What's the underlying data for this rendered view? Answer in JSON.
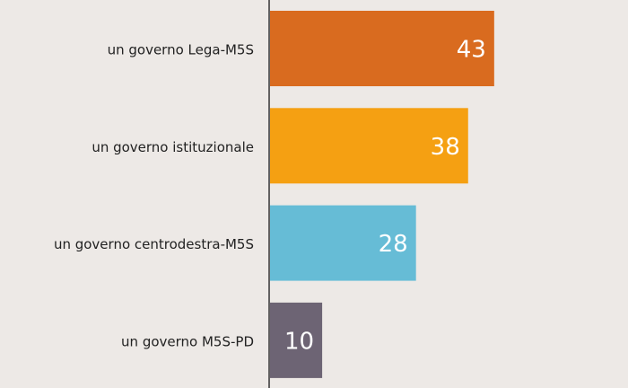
{
  "chart_data": {
    "type": "hbar",
    "categories": [
      "un governo Lega-M5S",
      "un governo istituzionale",
      "un governo centrodestra-M5S",
      "un governo M5S-PD"
    ],
    "values": [
      43,
      38,
      28,
      10
    ],
    "colors": [
      "#d96b1f",
      "#f5a012",
      "#66bcd6",
      "#6d6474"
    ]
  }
}
